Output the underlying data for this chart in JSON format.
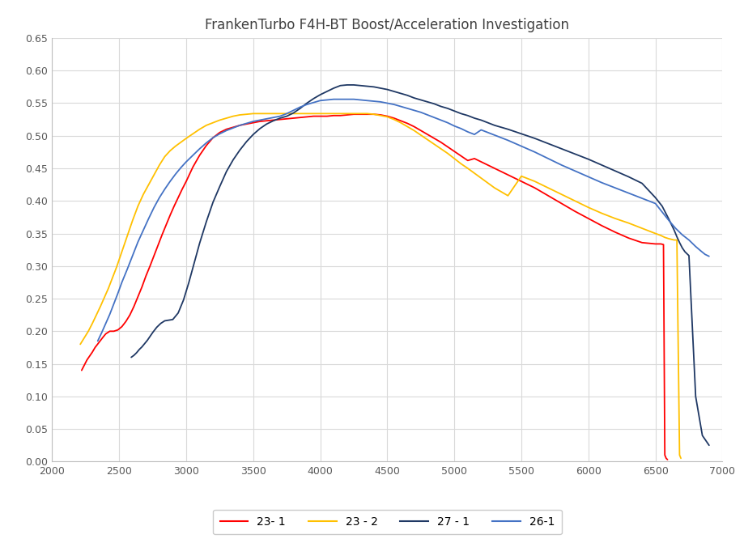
{
  "title": "FrankenTurbo F4H-BT Boost/Acceleration Investigation",
  "xlim": [
    2000,
    7000
  ],
  "ylim": [
    0.0,
    0.65
  ],
  "xticks": [
    2000,
    2500,
    3000,
    3500,
    4000,
    4500,
    5000,
    5500,
    6000,
    6500,
    7000
  ],
  "yticks": [
    0.0,
    0.05,
    0.1,
    0.15,
    0.2,
    0.25,
    0.3,
    0.35,
    0.4,
    0.45,
    0.5,
    0.55,
    0.6,
    0.65
  ],
  "series": {
    "23-1": {
      "color": "#FF0000",
      "x": [
        2220,
        2240,
        2260,
        2280,
        2300,
        2320,
        2350,
        2380,
        2400,
        2430,
        2460,
        2490,
        2520,
        2550,
        2580,
        2610,
        2640,
        2670,
        2700,
        2730,
        2760,
        2790,
        2820,
        2850,
        2880,
        2910,
        2940,
        2970,
        3000,
        3050,
        3100,
        3150,
        3200,
        3250,
        3300,
        3350,
        3400,
        3450,
        3500,
        3550,
        3600,
        3650,
        3700,
        3750,
        3800,
        3850,
        3900,
        3950,
        4000,
        4050,
        4100,
        4150,
        4200,
        4250,
        4300,
        4350,
        4400,
        4450,
        4500,
        4550,
        4600,
        4650,
        4700,
        4750,
        4800,
        4850,
        4900,
        4950,
        5000,
        5050,
        5100,
        5150,
        5200,
        5250,
        5300,
        5400,
        5500,
        5600,
        5700,
        5800,
        5900,
        6000,
        6100,
        6200,
        6300,
        6400,
        6500,
        6540,
        6560,
        6570,
        6580,
        6590
      ],
      "y": [
        0.14,
        0.148,
        0.156,
        0.162,
        0.168,
        0.175,
        0.183,
        0.191,
        0.196,
        0.2,
        0.2,
        0.202,
        0.207,
        0.215,
        0.225,
        0.238,
        0.253,
        0.268,
        0.285,
        0.3,
        0.316,
        0.332,
        0.348,
        0.363,
        0.378,
        0.392,
        0.405,
        0.418,
        0.43,
        0.452,
        0.47,
        0.485,
        0.497,
        0.505,
        0.51,
        0.513,
        0.516,
        0.518,
        0.52,
        0.522,
        0.523,
        0.524,
        0.525,
        0.526,
        0.527,
        0.528,
        0.529,
        0.53,
        0.53,
        0.53,
        0.531,
        0.531,
        0.532,
        0.533,
        0.533,
        0.533,
        0.533,
        0.532,
        0.53,
        0.527,
        0.523,
        0.519,
        0.514,
        0.508,
        0.502,
        0.496,
        0.49,
        0.483,
        0.476,
        0.469,
        0.462,
        0.465,
        0.46,
        0.455,
        0.45,
        0.44,
        0.43,
        0.42,
        0.408,
        0.396,
        0.384,
        0.373,
        0.362,
        0.352,
        0.343,
        0.336,
        0.334,
        0.334,
        0.333,
        0.01,
        0.005,
        0.003
      ]
    },
    "23-2": {
      "color": "#FFC000",
      "x": [
        2210,
        2240,
        2270,
        2300,
        2330,
        2360,
        2390,
        2420,
        2450,
        2480,
        2510,
        2540,
        2570,
        2600,
        2640,
        2680,
        2720,
        2760,
        2800,
        2840,
        2880,
        2920,
        2960,
        3000,
        3050,
        3100,
        3150,
        3200,
        3250,
        3300,
        3350,
        3400,
        3450,
        3500,
        3550,
        3600,
        3650,
        3700,
        3750,
        3800,
        3850,
        3900,
        3950,
        4000,
        4050,
        4100,
        4150,
        4200,
        4250,
        4300,
        4350,
        4400,
        4450,
        4500,
        4550,
        4600,
        4650,
        4700,
        4750,
        4800,
        4850,
        4900,
        4950,
        5000,
        5050,
        5100,
        5200,
        5300,
        5400,
        5500,
        5600,
        5700,
        5800,
        5900,
        6000,
        6100,
        6200,
        6300,
        6400,
        6450,
        6500,
        6540,
        6570,
        6600,
        6640,
        6660,
        6680,
        6690
      ],
      "y": [
        0.18,
        0.19,
        0.2,
        0.212,
        0.225,
        0.238,
        0.252,
        0.266,
        0.282,
        0.298,
        0.316,
        0.334,
        0.352,
        0.37,
        0.392,
        0.41,
        0.425,
        0.44,
        0.455,
        0.468,
        0.477,
        0.484,
        0.49,
        0.496,
        0.503,
        0.51,
        0.516,
        0.52,
        0.524,
        0.527,
        0.53,
        0.532,
        0.533,
        0.534,
        0.534,
        0.534,
        0.534,
        0.534,
        0.534,
        0.534,
        0.534,
        0.534,
        0.534,
        0.534,
        0.534,
        0.534,
        0.534,
        0.534,
        0.534,
        0.534,
        0.534,
        0.533,
        0.531,
        0.529,
        0.525,
        0.52,
        0.514,
        0.508,
        0.501,
        0.494,
        0.487,
        0.48,
        0.473,
        0.465,
        0.457,
        0.45,
        0.435,
        0.42,
        0.408,
        0.438,
        0.43,
        0.42,
        0.41,
        0.4,
        0.39,
        0.381,
        0.373,
        0.366,
        0.358,
        0.354,
        0.35,
        0.347,
        0.344,
        0.342,
        0.34,
        0.34,
        0.01,
        0.005
      ]
    },
    "27-1": {
      "color": "#1F3864",
      "x": [
        2590,
        2610,
        2630,
        2650,
        2670,
        2690,
        2710,
        2730,
        2750,
        2780,
        2810,
        2840,
        2870,
        2900,
        2940,
        2980,
        3020,
        3060,
        3100,
        3150,
        3200,
        3250,
        3300,
        3350,
        3400,
        3450,
        3500,
        3550,
        3600,
        3650,
        3700,
        3750,
        3800,
        3850,
        3900,
        3950,
        4000,
        4050,
        4100,
        4150,
        4200,
        4250,
        4300,
        4350,
        4400,
        4450,
        4500,
        4550,
        4600,
        4650,
        4700,
        4750,
        4800,
        4850,
        4900,
        4950,
        5000,
        5050,
        5100,
        5150,
        5200,
        5250,
        5300,
        5400,
        5500,
        5600,
        5700,
        5800,
        5900,
        6000,
        6100,
        6200,
        6300,
        6400,
        6500,
        6550,
        6600,
        6640,
        6660,
        6680,
        6700,
        6720,
        6750,
        6800,
        6850,
        6900
      ],
      "y": [
        0.16,
        0.163,
        0.167,
        0.172,
        0.176,
        0.181,
        0.186,
        0.192,
        0.198,
        0.206,
        0.212,
        0.216,
        0.217,
        0.218,
        0.228,
        0.248,
        0.275,
        0.305,
        0.335,
        0.368,
        0.398,
        0.422,
        0.445,
        0.463,
        0.478,
        0.491,
        0.502,
        0.511,
        0.518,
        0.523,
        0.527,
        0.53,
        0.535,
        0.542,
        0.55,
        0.557,
        0.563,
        0.568,
        0.573,
        0.577,
        0.578,
        0.578,
        0.577,
        0.576,
        0.575,
        0.573,
        0.571,
        0.568,
        0.565,
        0.562,
        0.558,
        0.555,
        0.552,
        0.549,
        0.545,
        0.542,
        0.538,
        0.534,
        0.531,
        0.527,
        0.524,
        0.52,
        0.516,
        0.51,
        0.503,
        0.496,
        0.488,
        0.48,
        0.472,
        0.464,
        0.455,
        0.446,
        0.437,
        0.427,
        0.405,
        0.392,
        0.372,
        0.355,
        0.345,
        0.336,
        0.328,
        0.322,
        0.316,
        0.1,
        0.04,
        0.025
      ]
    },
    "26-1": {
      "color": "#4472C4",
      "x": [
        2340,
        2370,
        2400,
        2430,
        2460,
        2490,
        2520,
        2560,
        2600,
        2640,
        2680,
        2720,
        2760,
        2800,
        2840,
        2880,
        2920,
        2960,
        3000,
        3050,
        3100,
        3150,
        3200,
        3250,
        3300,
        3350,
        3400,
        3450,
        3500,
        3550,
        3600,
        3650,
        3700,
        3750,
        3800,
        3850,
        3900,
        3950,
        4000,
        4050,
        4100,
        4150,
        4200,
        4250,
        4300,
        4350,
        4400,
        4450,
        4500,
        4550,
        4600,
        4650,
        4700,
        4750,
        4800,
        4850,
        4900,
        4950,
        5000,
        5050,
        5100,
        5150,
        5200,
        5250,
        5300,
        5350,
        5400,
        5500,
        5600,
        5700,
        5800,
        5900,
        6000,
        6100,
        6200,
        6300,
        6400,
        6500,
        6600,
        6650,
        6700,
        6750,
        6780,
        6800,
        6840,
        6870,
        6900
      ],
      "y": [
        0.185,
        0.198,
        0.212,
        0.226,
        0.242,
        0.258,
        0.275,
        0.295,
        0.316,
        0.337,
        0.355,
        0.373,
        0.39,
        0.405,
        0.418,
        0.43,
        0.441,
        0.451,
        0.46,
        0.47,
        0.48,
        0.489,
        0.497,
        0.503,
        0.508,
        0.512,
        0.516,
        0.519,
        0.522,
        0.524,
        0.526,
        0.528,
        0.53,
        0.534,
        0.539,
        0.544,
        0.548,
        0.551,
        0.554,
        0.555,
        0.556,
        0.556,
        0.556,
        0.556,
        0.555,
        0.554,
        0.553,
        0.552,
        0.55,
        0.548,
        0.545,
        0.542,
        0.539,
        0.536,
        0.532,
        0.528,
        0.524,
        0.52,
        0.515,
        0.511,
        0.506,
        0.502,
        0.509,
        0.505,
        0.501,
        0.497,
        0.493,
        0.484,
        0.475,
        0.465,
        0.455,
        0.446,
        0.437,
        0.428,
        0.42,
        0.412,
        0.404,
        0.396,
        0.37,
        0.358,
        0.348,
        0.34,
        0.334,
        0.33,
        0.323,
        0.318,
        0.315
      ]
    }
  },
  "legend_labels": [
    "23- 1",
    "23 - 2",
    "27 - 1",
    "26-1"
  ],
  "legend_colors": [
    "#FF0000",
    "#FFC000",
    "#1F3864",
    "#4472C4"
  ],
  "bg_color": "#FFFFFF",
  "plot_bg_color": "#FFFFFF",
  "grid_color": "#D9D9D9",
  "spine_color": "#BFBFBF",
  "tick_color": "#595959"
}
